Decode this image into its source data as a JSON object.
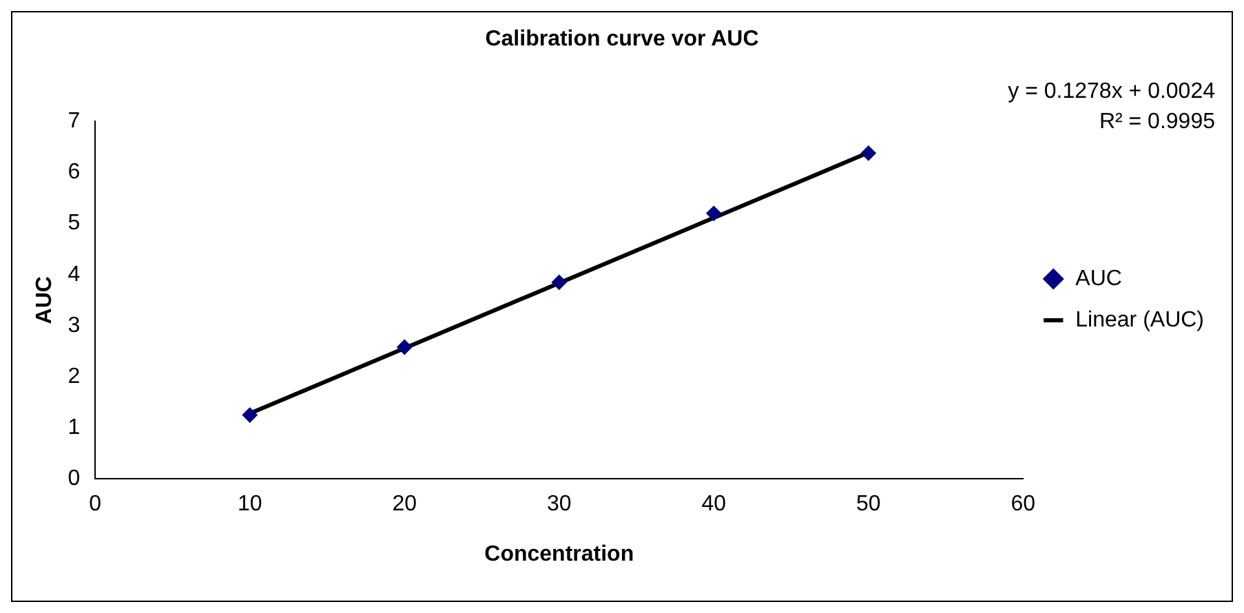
{
  "chart_data": {
    "type": "scatter",
    "title": "Calibration curve vor AUC",
    "xlabel": "Concentration",
    "ylabel": "AUC",
    "xlim": [
      0,
      60
    ],
    "xticks": [
      0,
      10,
      20,
      30,
      40,
      50,
      60
    ],
    "ylim": [
      0,
      7
    ],
    "yticks": [
      0,
      1,
      2,
      3,
      4,
      5,
      6,
      7
    ],
    "grid": false,
    "legend": "right",
    "annotations": [
      "y = 0.1278x + 0.0024",
      "R² = 0.9995"
    ],
    "series": [
      {
        "name": "AUC",
        "type": "scatter",
        "color": "#000080",
        "marker": "diamond",
        "x": [
          10,
          20,
          30,
          40,
          50
        ],
        "values": [
          1.25,
          2.58,
          3.85,
          5.2,
          6.38
        ]
      },
      {
        "name": "Linear (AUC)",
        "type": "line",
        "color": "#000000",
        "marker": "none",
        "line_style": "solid",
        "x": [
          10,
          50
        ],
        "values": [
          1.28,
          6.39
        ]
      }
    ]
  }
}
